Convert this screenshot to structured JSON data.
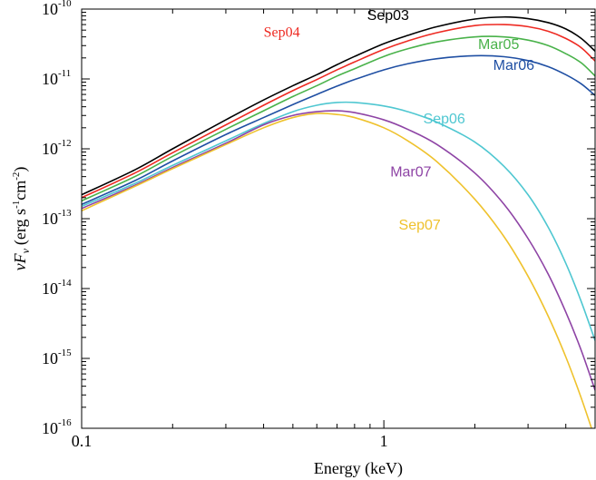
{
  "chart_data": {
    "type": "line",
    "title": "",
    "xlabel": "Energy (keV)",
    "ylabel": "νFν (erg s⁻¹cm⁻²)",
    "ylabel_parts": {
      "nu": "ν",
      "F": "F",
      "sub": "ν",
      "open": "(erg s",
      "s_exp": "-1",
      "cm": "cm",
      "cm_exp": "-2",
      "close": ")"
    },
    "xscale": "log",
    "yscale": "log",
    "xlim": [
      0.1,
      5.0
    ],
    "ylim": [
      1e-16,
      1e-10
    ],
    "xticks": [
      {
        "value": 0.1,
        "label": "0.1"
      },
      {
        "value": 1,
        "label": "1"
      }
    ],
    "yticks": [
      {
        "value": 1e-10,
        "base": "10",
        "exp": "-10"
      },
      {
        "value": 1e-11,
        "base": "10",
        "exp": "-11"
      },
      {
        "value": 1e-12,
        "base": "10",
        "exp": "-12"
      },
      {
        "value": 1e-13,
        "base": "10",
        "exp": "-13"
      },
      {
        "value": 1e-14,
        "base": "10",
        "exp": "-14"
      },
      {
        "value": 1e-15,
        "base": "10",
        "exp": "-15"
      },
      {
        "value": 1e-16,
        "base": "10",
        "exp": "-16"
      }
    ],
    "grid": false,
    "legend": "inline labels",
    "x": [
      0.1,
      0.15,
      0.2,
      0.3,
      0.4,
      0.5,
      0.6,
      0.7,
      0.8,
      1.0,
      1.2,
      1.5,
      2.0,
      2.5,
      3.0,
      3.5,
      4.0,
      4.5,
      5.0
    ],
    "series": [
      {
        "name": "Sep03",
        "color": "#000000",
        "label_x": 0.88,
        "label_y": 7e-11,
        "label_font": "sans",
        "values": [
          2.2e-13,
          5e-13,
          1e-12,
          2.6e-12,
          5e-12,
          8e-12,
          1.15e-11,
          1.6e-11,
          2.1e-11,
          3.2e-11,
          4.2e-11,
          5.6e-11,
          7.2e-11,
          7.7e-11,
          7.3e-11,
          6.4e-11,
          5.2e-11,
          3.8e-11,
          2.5e-11
        ]
      },
      {
        "name": "Sep04",
        "color": "#ee2a22",
        "label_x": 0.4,
        "label_y": 4e-11,
        "label_font": "serif",
        "values": [
          2e-13,
          4.5e-13,
          8.8e-13,
          2.2e-12,
          4.2e-12,
          6.8e-12,
          9.8e-12,
          1.35e-11,
          1.75e-11,
          2.65e-11,
          3.5e-11,
          4.6e-11,
          5.8e-11,
          6e-11,
          5.6e-11,
          4.8e-11,
          3.8e-11,
          2.8e-11,
          1.8e-11
        ]
      },
      {
        "name": "Mar05",
        "color": "#49b24a",
        "label_x": 2.05,
        "label_y": 2.7e-11,
        "label_font": "sans",
        "values": [
          1.8e-13,
          4e-13,
          7.8e-13,
          1.9e-12,
          3.5e-12,
          5.6e-12,
          8e-12,
          1.1e-11,
          1.4e-11,
          2.1e-11,
          2.7e-11,
          3.4e-11,
          4e-11,
          4e-11,
          3.6e-11,
          3e-11,
          2.3e-11,
          1.7e-11,
          1.1e-11
        ]
      },
      {
        "name": "Mar06",
        "color": "#1f4fa3",
        "label_x": 2.3,
        "label_y": 1.35e-11,
        "label_font": "sans",
        "values": [
          1.6e-13,
          3.5e-13,
          6.7e-13,
          1.6e-12,
          2.8e-12,
          4.3e-12,
          6e-12,
          7.9e-12,
          9.8e-12,
          1.35e-11,
          1.65e-11,
          1.95e-11,
          2.15e-11,
          2.08e-11,
          1.83e-11,
          1.5e-11,
          1.15e-11,
          8.5e-12,
          5.8e-12
        ]
      },
      {
        "name": "Sep06",
        "color": "#4fc7d1",
        "label_x": 1.35,
        "label_y": 2.3e-12,
        "label_font": "sans",
        "values": [
          1.5e-13,
          3.2e-13,
          5.8e-13,
          1.3e-12,
          2.3e-12,
          3.4e-12,
          4.2e-12,
          4.6e-12,
          4.6e-12,
          4.1e-12,
          3.4e-12,
          2.4e-12,
          1.25e-12,
          5.6e-13,
          2.2e-13,
          7.5e-14,
          2.3e-14,
          6.5e-15,
          1.8e-15
        ]
      },
      {
        "name": "Mar07",
        "color": "#8e44a5",
        "label_x": 1.05,
        "label_y": 4e-13,
        "label_font": "sans",
        "values": [
          1.4e-13,
          3e-13,
          5.4e-13,
          1.2e-12,
          2.2e-12,
          3e-12,
          3.4e-12,
          3.5e-12,
          3.3e-12,
          2.6e-12,
          1.9e-12,
          1.15e-12,
          4.5e-13,
          1.6e-13,
          5.2e-14,
          1.6e-14,
          4.6e-15,
          1.3e-15,
          3.5e-16
        ]
      },
      {
        "name": "Sep07",
        "color": "#efc22d",
        "label_x": 1.12,
        "label_y": 7e-14,
        "label_font": "sans",
        "values": [
          1.3e-13,
          2.9e-13,
          5.2e-13,
          1.15e-12,
          2e-12,
          2.8e-12,
          3.2e-12,
          3.1e-12,
          2.8e-12,
          2e-12,
          1.3e-12,
          6.5e-13,
          1.9e-13,
          5.5e-14,
          1.5e-14,
          4e-15,
          1.05e-15,
          2.7e-16,
          7e-17
        ]
      }
    ]
  }
}
